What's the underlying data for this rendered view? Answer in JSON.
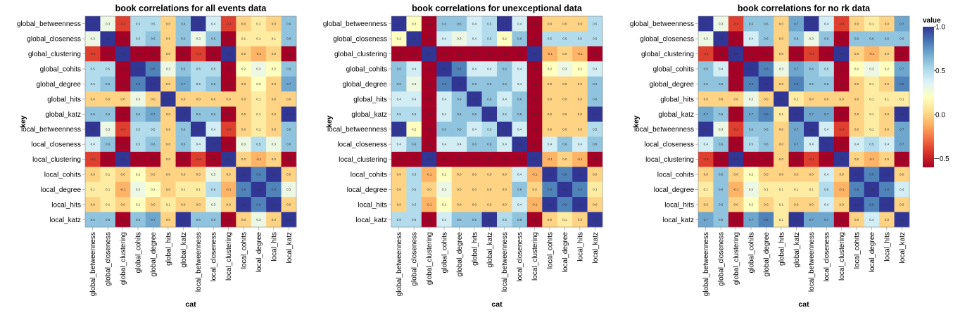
{
  "chart_data": [
    {
      "type": "heatmap",
      "title": "book correlations for all events data",
      "xlabel": "cat",
      "ylabel": "key",
      "rows": [
        "global_betweenness",
        "global_closeness",
        "global_clustering",
        "global_cohits",
        "global_degree",
        "global_hits",
        "global_katz",
        "local_betweenness",
        "local_closeness",
        "local_clustering",
        "local_cohits",
        "local_degree",
        "local_hits",
        "local_katz"
      ],
      "cols": [
        "global_betweenness",
        "global_closeness",
        "global_clustering",
        "global_cohits",
        "global_degree",
        "global_hits",
        "global_katz",
        "local_betweenness",
        "local_closeness",
        "local_clustering",
        "local_cohits",
        "local_degree",
        "local_hits",
        "local_katz"
      ],
      "values": [
        [
          1.0,
          0.3,
          -0.4,
          0.5,
          0.5,
          0.0,
          0.6,
          1.0,
          0.4,
          -0.4,
          0.0,
          0.1,
          0.0,
          0.6
        ],
        [
          0.3,
          1.0,
          -0.6,
          0.5,
          0.6,
          0.0,
          0.6,
          0.3,
          0.6,
          -0.6,
          0.1,
          0.1,
          0.1,
          0.6
        ],
        [
          -0.4,
          -0.6,
          1.0,
          -0.6,
          -0.8,
          0.0,
          -0.6,
          -0.4,
          -0.8,
          1.0,
          0.0,
          -0.1,
          0.0,
          -0.6
        ],
        [
          0.5,
          0.5,
          -0.6,
          1.0,
          0.8,
          0.3,
          0.6,
          0.5,
          0.5,
          -0.6,
          0.2,
          0.3,
          0.2,
          0.6
        ],
        [
          0.5,
          0.6,
          -0.8,
          0.8,
          1.0,
          0.0,
          0.7,
          0.5,
          0.6,
          -0.8,
          0.0,
          0.2,
          0.0,
          0.7
        ],
        [
          0.0,
          0.0,
          0.0,
          0.3,
          0.0,
          1.0,
          0.0,
          0.0,
          0.0,
          0.0,
          0.0,
          0.1,
          0.0,
          0.0
        ],
        [
          0.6,
          0.6,
          -0.6,
          0.6,
          0.7,
          0.0,
          1.0,
          0.6,
          0.6,
          -0.6,
          0.0,
          0.1,
          0.0,
          1.0
        ],
        [
          1.0,
          0.3,
          -0.4,
          0.5,
          0.5,
          0.0,
          0.6,
          1.0,
          0.4,
          -0.4,
          0.0,
          0.1,
          0.0,
          0.6
        ],
        [
          0.4,
          0.6,
          -0.8,
          0.5,
          0.6,
          0.0,
          0.6,
          0.4,
          1.0,
          -0.8,
          0.3,
          0.5,
          0.3,
          0.6
        ],
        [
          -0.4,
          -0.6,
          1.0,
          -0.6,
          -0.8,
          0.0,
          -0.6,
          -0.4,
          -0.8,
          1.0,
          0.0,
          -0.1,
          0.0,
          -0.6
        ],
        [
          0.0,
          0.1,
          0.0,
          0.2,
          0.0,
          0.0,
          0.0,
          0.0,
          0.3,
          0.0,
          1.0,
          0.8,
          1.0,
          0.0
        ],
        [
          0.1,
          0.1,
          -0.1,
          0.3,
          0.2,
          0.0,
          0.1,
          0.1,
          0.5,
          -0.1,
          0.8,
          1.0,
          0.8,
          0.3
        ],
        [
          0.0,
          0.1,
          0.0,
          0.2,
          0.0,
          0.1,
          0.0,
          0.0,
          0.3,
          0.0,
          1.0,
          0.8,
          1.0,
          0.0
        ],
        [
          0.6,
          0.6,
          -0.6,
          0.6,
          0.7,
          0.0,
          1.0,
          0.6,
          0.6,
          -0.6,
          0.0,
          0.3,
          0.0,
          1.0
        ]
      ]
    },
    {
      "type": "heatmap",
      "title": "book correlations for unexceptional data",
      "xlabel": "cat",
      "ylabel": "key",
      "rows": [
        "global_betweenness",
        "global_closeness",
        "global_clustering",
        "global_cohits",
        "global_degree",
        "global_hits",
        "global_katz",
        "local_betweenness",
        "local_closeness",
        "local_clustering",
        "local_cohits",
        "local_degree",
        "local_hits",
        "local_katz"
      ],
      "cols": [
        "global_betweenness",
        "global_closeness",
        "global_clustering",
        "global_cohits",
        "global_degree",
        "global_hits",
        "global_katz",
        "local_betweenness",
        "local_closeness",
        "local_clustering",
        "local_cohits",
        "local_degree",
        "local_hits",
        "local_katz"
      ],
      "values": [
        [
          1.0,
          0.2,
          -0.6,
          0.6,
          0.6,
          0.4,
          0.5,
          1.0,
          0.4,
          -0.6,
          0.0,
          0.0,
          0.0,
          0.5
        ],
        [
          0.2,
          1.0,
          -0.6,
          0.4,
          0.3,
          0.4,
          0.5,
          0.2,
          0.6,
          -0.6,
          0.5,
          0.5,
          0.5,
          0.5
        ],
        [
          -0.6,
          -0.6,
          1.0,
          -0.8,
          -0.8,
          -0.6,
          -0.6,
          -0.6,
          -0.6,
          1.0,
          -0.1,
          0.0,
          -0.1,
          -0.6
        ],
        [
          0.6,
          0.4,
          -0.8,
          1.0,
          0.8,
          0.4,
          0.4,
          0.6,
          0.4,
          -0.8,
          0.2,
          0.3,
          0.2,
          0.4
        ],
        [
          0.6,
          0.3,
          -0.8,
          0.8,
          1.0,
          0.6,
          0.6,
          0.6,
          0.4,
          -0.8,
          0.0,
          0.0,
          0.0,
          0.6
        ],
        [
          0.4,
          0.4,
          -0.6,
          0.4,
          0.6,
          1.0,
          0.6,
          0.4,
          0.6,
          -0.6,
          0.0,
          0.0,
          0.0,
          0.6
        ],
        [
          0.5,
          0.5,
          -0.6,
          0.4,
          0.6,
          0.6,
          1.0,
          0.5,
          0.6,
          -0.6,
          0.0,
          0.0,
          0.0,
          1.0
        ],
        [
          1.0,
          0.2,
          -0.6,
          0.6,
          0.6,
          0.4,
          0.5,
          1.0,
          0.4,
          -0.6,
          0.0,
          0.0,
          0.0,
          0.5
        ],
        [
          0.4,
          0.6,
          -0.6,
          0.4,
          0.4,
          0.6,
          0.6,
          0.4,
          1.0,
          -0.6,
          0.4,
          0.6,
          0.4,
          0.6
        ],
        [
          -0.6,
          -0.6,
          1.0,
          -0.8,
          -0.8,
          -0.6,
          -0.6,
          -0.6,
          -0.6,
          1.0,
          -0.1,
          0.0,
          -0.1,
          -0.6
        ],
        [
          0.0,
          0.5,
          -0.1,
          0.2,
          0.0,
          0.0,
          0.0,
          0.0,
          0.4,
          -0.1,
          1.0,
          0.8,
          1.0,
          0.0
        ],
        [
          0.0,
          0.5,
          0.0,
          0.3,
          0.0,
          0.0,
          0.0,
          0.0,
          0.6,
          0.0,
          0.8,
          1.0,
          0.8,
          0.1
        ],
        [
          0.0,
          0.5,
          -0.1,
          0.2,
          0.0,
          0.0,
          0.0,
          0.0,
          0.4,
          -0.1,
          1.0,
          0.8,
          1.0,
          0.0
        ],
        [
          0.5,
          0.5,
          -0.6,
          0.4,
          0.6,
          0.6,
          1.0,
          0.5,
          0.6,
          -0.6,
          0.0,
          0.1,
          0.0,
          1.0
        ]
      ]
    },
    {
      "type": "heatmap",
      "title": "book correlations for no rk data",
      "xlabel": "cat",
      "ylabel": "key",
      "rows": [
        "global_betweenness",
        "global_closeness",
        "global_clustering",
        "global_cohits",
        "global_degree",
        "global_hits",
        "global_katz",
        "local_betweenness",
        "local_closeness",
        "local_clustering",
        "local_cohits",
        "local_degree",
        "local_hits",
        "local_katz"
      ],
      "cols": [
        "global_betweenness",
        "global_closeness",
        "global_clustering",
        "global_cohits",
        "global_degree",
        "global_hits",
        "global_katz",
        "local_betweenness",
        "local_closeness",
        "local_clustering",
        "local_cohits",
        "local_degree",
        "local_hits",
        "local_katz"
      ],
      "values": [
        [
          1.0,
          0.3,
          -0.4,
          0.6,
          0.6,
          0.0,
          0.7,
          1.0,
          0.4,
          -0.4,
          0.0,
          0.1,
          0.0,
          0.7
        ],
        [
          0.3,
          1.0,
          -0.6,
          0.4,
          0.6,
          0.0,
          0.6,
          0.3,
          0.6,
          -0.6,
          0.6,
          0.6,
          0.6,
          0.6
        ],
        [
          -0.4,
          -0.6,
          1.0,
          -0.6,
          -0.8,
          0.0,
          -0.6,
          -0.4,
          -0.8,
          1.0,
          0.0,
          -0.1,
          0.0,
          -0.6
        ],
        [
          0.6,
          0.4,
          -0.6,
          1.0,
          0.8,
          0.3,
          0.7,
          0.6,
          0.5,
          -0.6,
          0.2,
          0.3,
          0.2,
          0.7
        ],
        [
          0.6,
          0.6,
          -0.8,
          0.8,
          1.0,
          0.0,
          0.8,
          0.6,
          0.6,
          -0.8,
          0.0,
          0.1,
          0.0,
          0.8
        ],
        [
          0.0,
          0.0,
          0.0,
          0.3,
          0.0,
          1.0,
          0.1,
          0.0,
          0.0,
          0.0,
          0.0,
          0.1,
          0.1,
          0.1
        ],
        [
          0.7,
          0.6,
          -0.6,
          0.7,
          0.8,
          0.1,
          1.0,
          0.7,
          0.7,
          -0.6,
          0.0,
          0.1,
          0.0,
          1.0
        ],
        [
          1.0,
          0.3,
          -0.4,
          0.6,
          0.6,
          0.0,
          0.7,
          1.0,
          0.4,
          -0.4,
          0.0,
          0.1,
          0.0,
          0.7
        ],
        [
          0.4,
          0.6,
          -0.8,
          0.5,
          0.6,
          0.0,
          0.7,
          0.4,
          1.0,
          -0.8,
          0.4,
          0.5,
          0.4,
          0.7
        ],
        [
          -0.4,
          -0.6,
          1.0,
          -0.6,
          -0.8,
          0.0,
          -0.6,
          -0.4,
          -0.8,
          1.0,
          0.0,
          -0.1,
          0.0,
          -0.6
        ],
        [
          0.0,
          0.6,
          0.0,
          0.2,
          0.0,
          0.0,
          0.0,
          0.0,
          0.4,
          0.0,
          1.0,
          0.8,
          1.0,
          0.0
        ],
        [
          0.1,
          0.6,
          -0.1,
          0.3,
          0.1,
          0.1,
          0.1,
          0.1,
          0.5,
          -0.1,
          0.8,
          1.0,
          0.8,
          0.4
        ],
        [
          0.0,
          0.6,
          0.0,
          0.2,
          0.0,
          0.1,
          0.0,
          0.0,
          0.4,
          0.0,
          1.0,
          0.8,
          1.0,
          0.0
        ],
        [
          0.7,
          0.6,
          -0.6,
          0.7,
          0.8,
          0.1,
          1.0,
          0.7,
          0.7,
          -0.6,
          0.0,
          0.4,
          0.0,
          1.0
        ]
      ]
    }
  ],
  "legend": {
    "title": "value",
    "ticks": [
      {
        "value": 1.0,
        "label": "1.0"
      },
      {
        "value": 0.5,
        "label": "0.5"
      },
      {
        "value": 0.0,
        "label": "0.0"
      },
      {
        "value": -0.5,
        "label": "−0.5"
      }
    ],
    "domain": [
      -0.6,
      1.0
    ],
    "colors": [
      "#a50026",
      "#d73027",
      "#f46d43",
      "#fdae61",
      "#fee090",
      "#ffffbf",
      "#e0f3f8",
      "#abd9e9",
      "#74add1",
      "#4575b4",
      "#313695"
    ]
  }
}
